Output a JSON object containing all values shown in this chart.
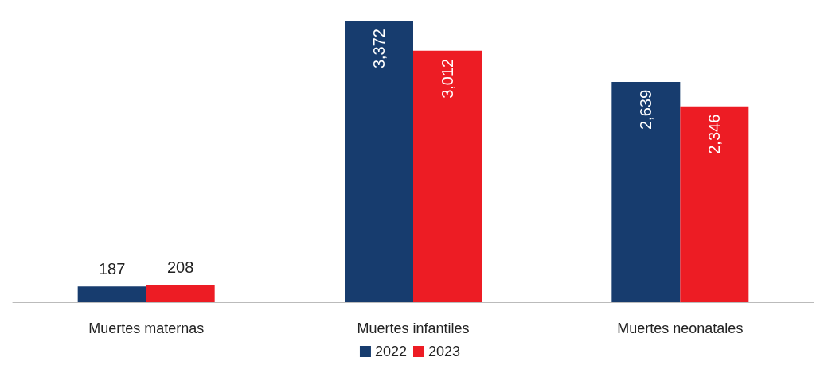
{
  "chart_data": {
    "type": "bar",
    "categories": [
      "Muertes maternas",
      "Muertes infantiles",
      "Muertes neonatales"
    ],
    "series": [
      {
        "name": "2022",
        "color": "#173c6e",
        "values": [
          187,
          3372,
          2639
        ],
        "value_labels": [
          "187",
          "3,372",
          "2,639"
        ]
      },
      {
        "name": "2023",
        "color": "#ed1c24",
        "values": [
          208,
          3012,
          2346
        ],
        "value_labels": [
          "208",
          "3,012",
          "2,346"
        ]
      }
    ],
    "legend": "bottom",
    "grid": false
  }
}
